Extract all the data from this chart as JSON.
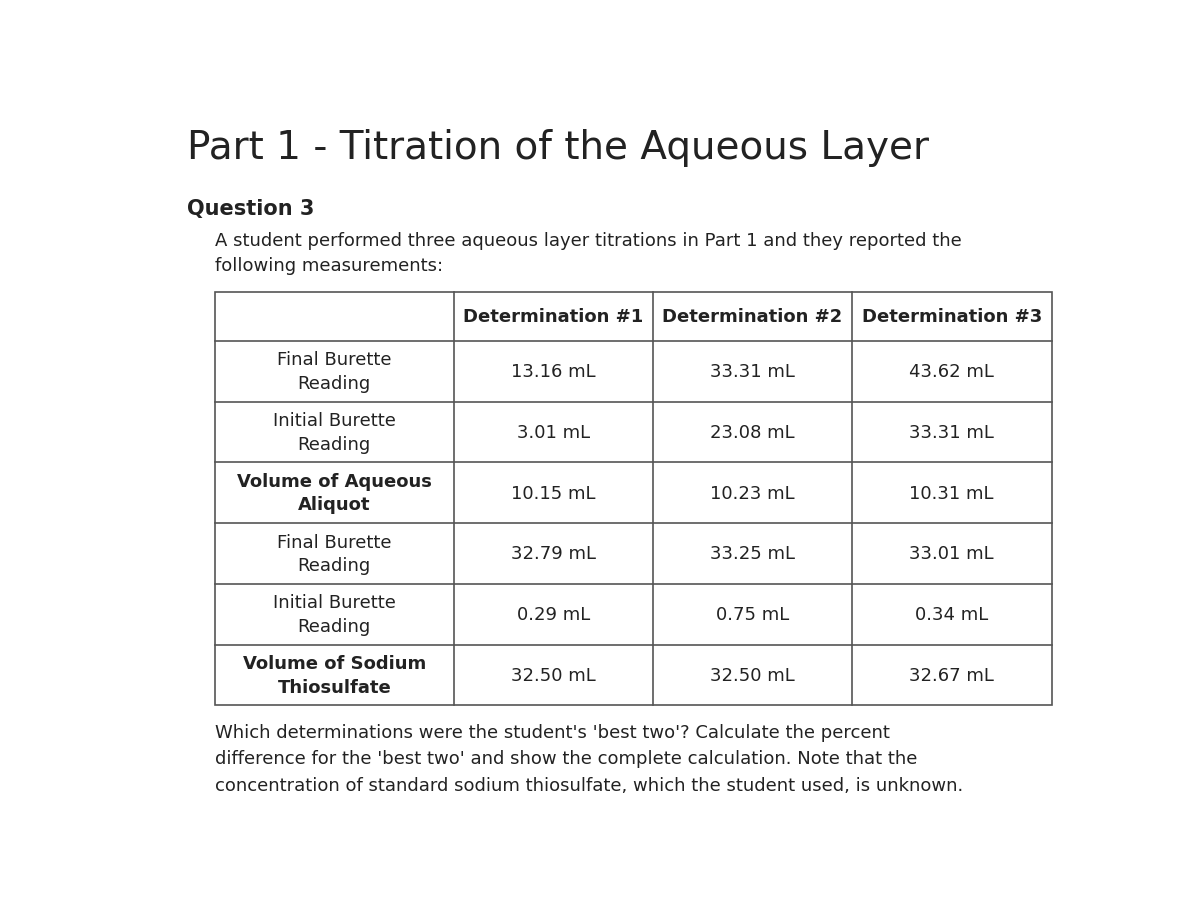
{
  "title": "Part 1 - Titration of the Aqueous Layer",
  "question_label": "Question 3",
  "intro_text": "A student performed three aqueous layer titrations in Part 1 and they reported the\nfollowing measurements:",
  "footer_text": "Which determinations were the student's 'best two'? Calculate the percent\ndifference for the 'best two' and show the complete calculation. Note that the\nconcentration of standard sodium thiosulfate, which the student used, is unknown.",
  "col_headers": [
    "",
    "Determination #1",
    "Determination #2",
    "Determination #3"
  ],
  "row_labels": [
    "Final Burette\nReading",
    "Initial Burette\nReading",
    "Volume of Aqueous\nAliquot",
    "Final Burette\nReading",
    "Initial Burette\nReading",
    "Volume of Sodium\nThiosulfate"
  ],
  "row_label_bold": [
    false,
    false,
    true,
    false,
    false,
    true
  ],
  "data": [
    [
      "13.16 mL",
      "33.31 mL",
      "43.62 mL"
    ],
    [
      "3.01 mL",
      "23.08 mL",
      "33.31 mL"
    ],
    [
      "10.15 mL",
      "10.23 mL",
      "10.31 mL"
    ],
    [
      "32.79 mL",
      "33.25 mL",
      "33.01 mL"
    ],
    [
      "0.29 mL",
      "0.75 mL",
      "0.34 mL"
    ],
    [
      "32.50 mL",
      "32.50 mL",
      "32.67 mL"
    ]
  ],
  "bg_color": "#ffffff",
  "text_color": "#222222",
  "table_border_color": "#555555",
  "title_fontsize": 28,
  "question_fontsize": 15,
  "body_fontsize": 13,
  "table_header_fontsize": 13,
  "table_body_fontsize": 13
}
